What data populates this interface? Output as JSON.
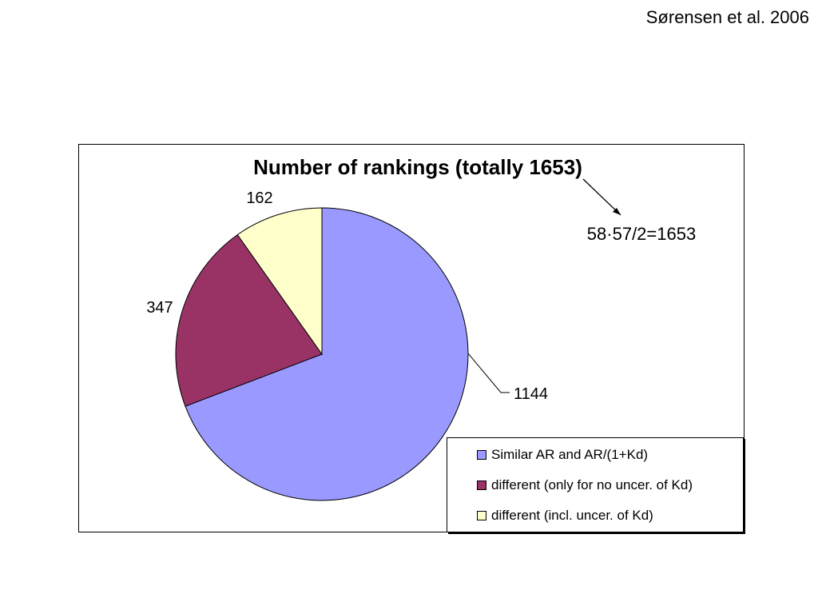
{
  "citation": "Sørensen et al. 2006",
  "annotation": "58·57/2=1653",
  "chart_data": {
    "type": "pie",
    "title": "Number of rankings (totally 1653)",
    "start_angle_deg": 0,
    "direction": "clockwise",
    "slices": [
      {
        "label": "Similar AR and AR/(1+Kd)",
        "value": 1144,
        "color": "#9999FF"
      },
      {
        "label": "different (only for no uncer. of Kd)",
        "value": 347,
        "color": "#993366"
      },
      {
        "label": "different (incl. uncer. of Kd)",
        "value": 162,
        "color": "#FFFFCC"
      }
    ],
    "legend": {
      "position": "bottom-right"
    }
  }
}
